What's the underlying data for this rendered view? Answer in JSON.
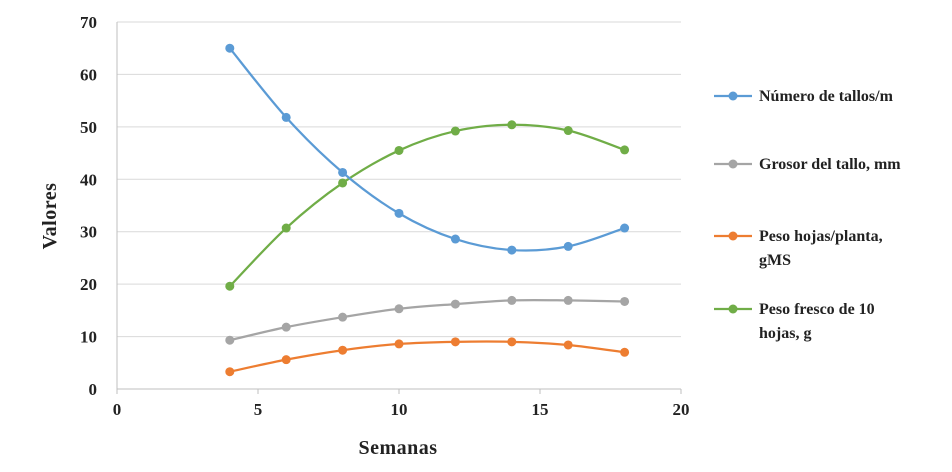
{
  "chart_data": {
    "type": "line",
    "xlabel": "Semanas",
    "ylabel": "Valores",
    "xlim": [
      0,
      20
    ],
    "ylim": [
      0,
      70
    ],
    "xticks": [
      0,
      5,
      10,
      15,
      20
    ],
    "yticks": [
      0,
      10,
      20,
      30,
      40,
      50,
      60,
      70
    ],
    "grid": "horizontal",
    "legend_position": "right",
    "x": [
      4,
      6,
      8,
      10,
      12,
      14,
      16,
      18
    ],
    "series": [
      {
        "name_lines": [
          "Número de tallos/m"
        ],
        "color": "#5B9BD5",
        "values": [
          65.0,
          51.8,
          41.3,
          33.5,
          28.6,
          26.5,
          27.2,
          30.7
        ]
      },
      {
        "name_lines": [
          "Grosor del tallo, mm"
        ],
        "color": "#A5A5A5",
        "values": [
          9.3,
          11.8,
          13.7,
          15.3,
          16.2,
          16.9,
          16.9,
          16.7
        ]
      },
      {
        "name_lines": [
          "Peso hojas/planta,",
          "gMS"
        ],
        "color": "#ED7D31",
        "values": [
          3.3,
          5.6,
          7.4,
          8.6,
          9.0,
          9.0,
          8.4,
          7.0
        ]
      },
      {
        "name_lines": [
          "Peso fresco de 10",
          "hojas, g"
        ],
        "color": "#70AD47",
        "values": [
          19.6,
          30.7,
          39.3,
          45.5,
          49.2,
          50.4,
          49.3,
          45.6
        ]
      }
    ]
  }
}
